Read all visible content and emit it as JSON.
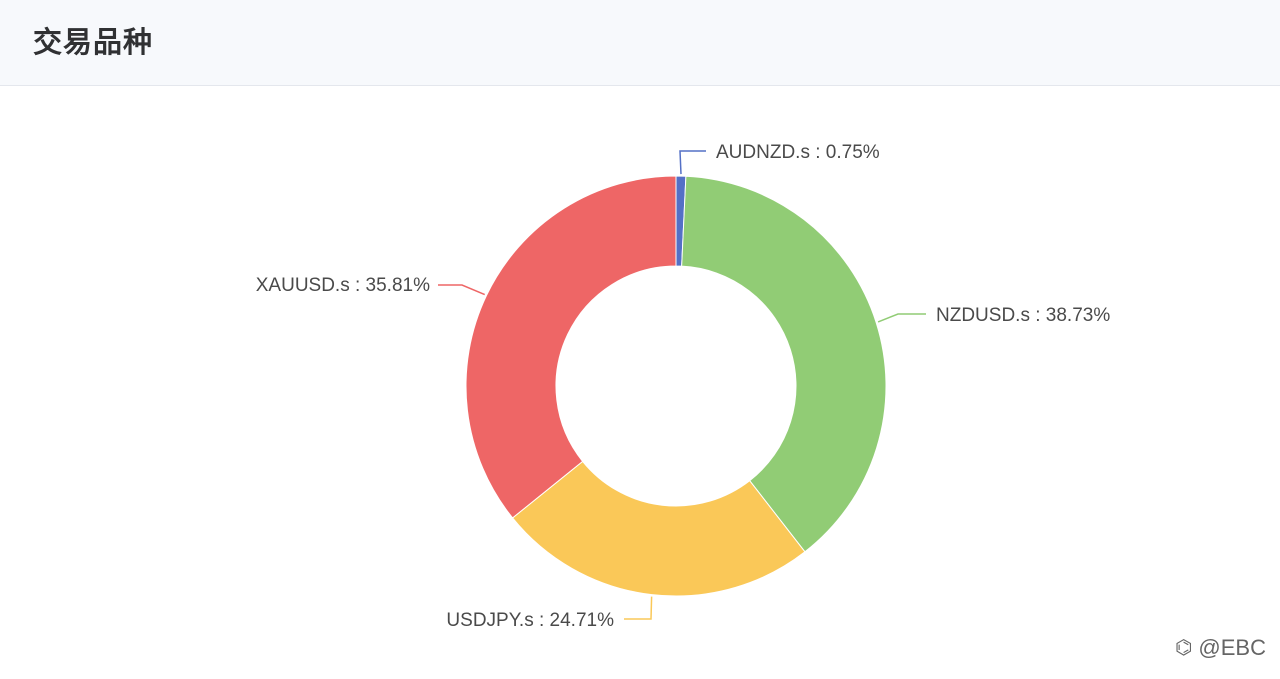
{
  "header": {
    "title": "交易品种"
  },
  "chart_data": {
    "type": "pie",
    "donut": true,
    "title": "",
    "slices": [
      {
        "label": "AUDNZD.s : 0.75%",
        "name": "AUDNZD.s",
        "value": 0.75,
        "color": "#5470c6"
      },
      {
        "label": "NZDUSD.s : 38.73%",
        "name": "NZDUSD.s",
        "value": 38.73,
        "color": "#91cc75"
      },
      {
        "label": "USDJPY.s : 24.71%",
        "name": "USDJPY.s",
        "value": 24.71,
        "color": "#fac858"
      },
      {
        "label": "XAUUSD.s : 35.81%",
        "name": "XAUUSD.s",
        "value": 35.81,
        "color": "#ee6666"
      }
    ],
    "legend": "none"
  },
  "watermark": {
    "text": "@EBC",
    "icon": "logo-icon"
  }
}
